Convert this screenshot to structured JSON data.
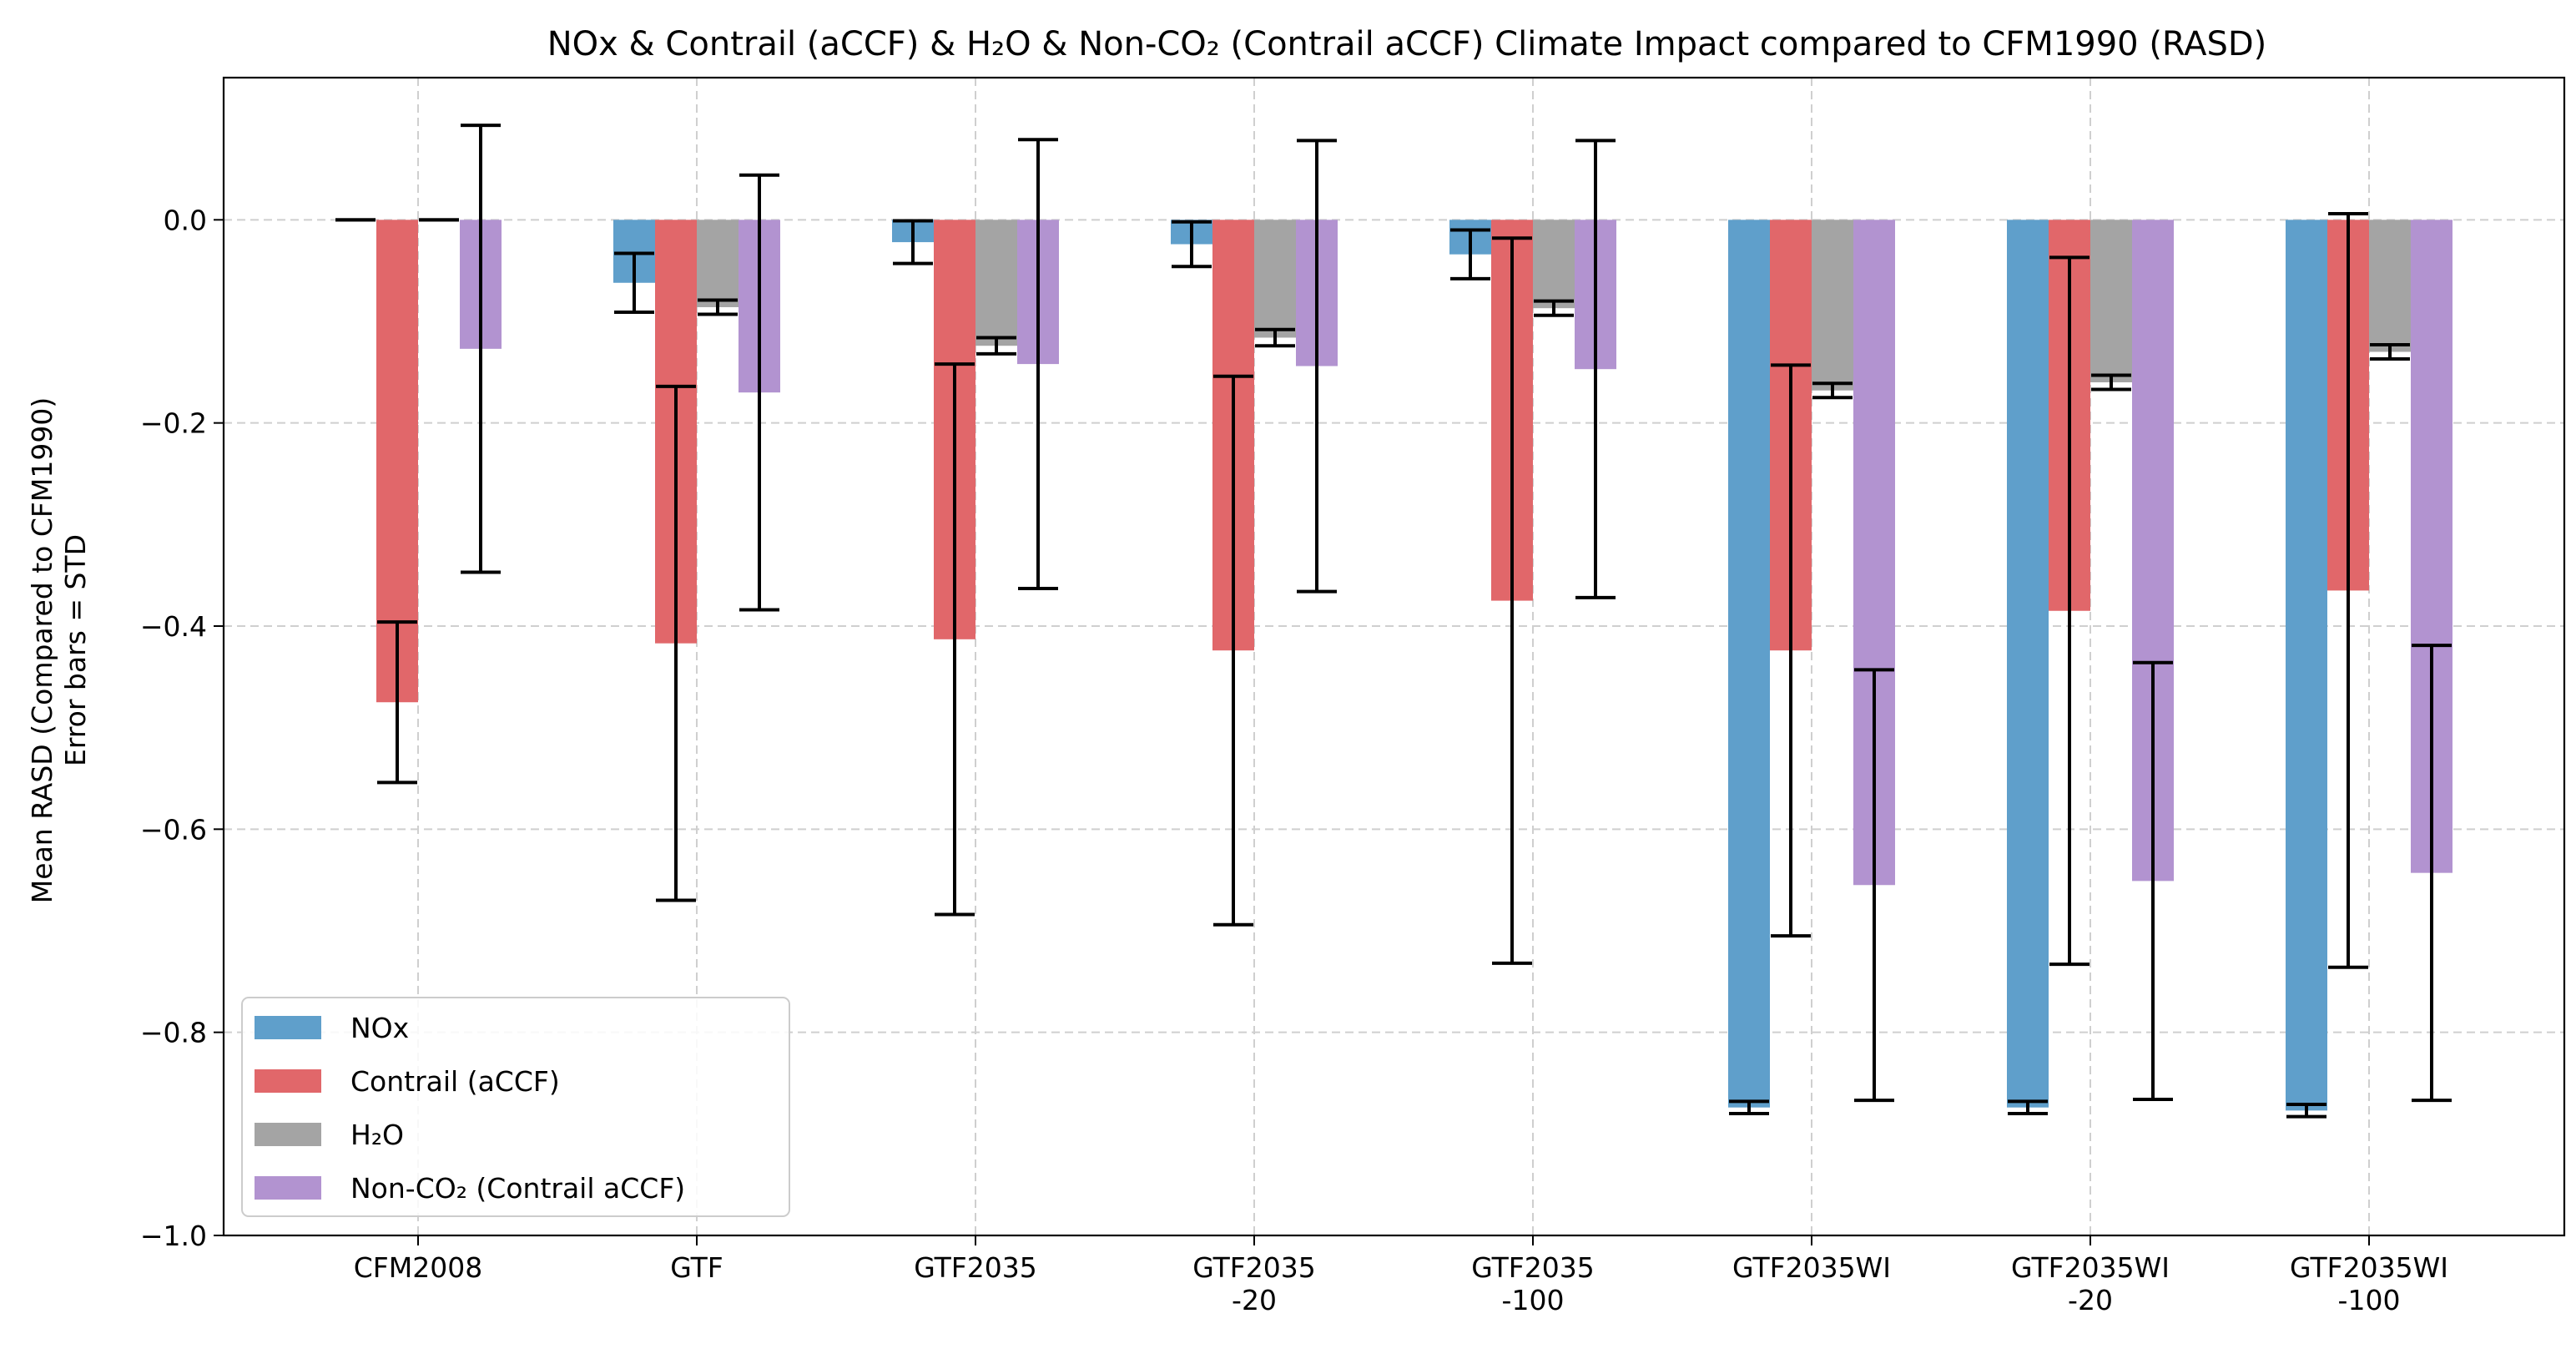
{
  "chart_data": {
    "type": "bar",
    "title": "NOx & Contrail (aCCF) & H₂O & Non-CO₂ (Contrail aCCF) Climate Impact compared to CFM1990 (RASD)",
    "xlabel": "",
    "ylabel_lines": [
      "Mean RASD (Compared to CFM1990)",
      "Error bars = STD"
    ],
    "ylim": [
      -1.0,
      0.14
    ],
    "yticks": [
      0.0,
      -0.2,
      -0.4,
      -0.6,
      -0.8,
      -1.0
    ],
    "ytick_labels": [
      "0.0",
      "−0.2",
      "−0.4",
      "−0.6",
      "−0.8",
      "−1.0"
    ],
    "grid": true,
    "legend_position": "lower-left",
    "categories": [
      [
        "CFM2008"
      ],
      [
        "GTF"
      ],
      [
        "GTF2035"
      ],
      [
        "GTF2035",
        "-20"
      ],
      [
        "GTF2035",
        "-100"
      ],
      [
        "GTF2035WI"
      ],
      [
        "GTF2035WI",
        "-20"
      ],
      [
        "GTF2035WI",
        "-100"
      ]
    ],
    "series": [
      {
        "name": "NOx",
        "color": "#5f9fcb",
        "values": [
          0.0,
          -0.062,
          -0.022,
          -0.024,
          -0.034,
          -0.874,
          -0.874,
          -0.877
        ],
        "errors": [
          0.0,
          0.029,
          0.021,
          0.022,
          0.024,
          0.006,
          0.006,
          0.006
        ]
      },
      {
        "name": "Contrail (aCCF)",
        "color": "#e1676a",
        "values": [
          -0.475,
          -0.417,
          -0.413,
          -0.424,
          -0.375,
          -0.424,
          -0.385,
          -0.365
        ],
        "errors": [
          0.079,
          0.253,
          0.271,
          0.27,
          0.357,
          0.281,
          0.348,
          0.371
        ]
      },
      {
        "name": "H₂O",
        "color": "#a4a4a4",
        "values": [
          0.0,
          -0.086,
          -0.124,
          -0.116,
          -0.087,
          -0.168,
          -0.16,
          -0.13
        ],
        "errors": [
          0.0,
          0.007,
          0.008,
          0.008,
          0.007,
          0.007,
          0.007,
          0.007
        ]
      },
      {
        "name": "Non-CO₂ (Contrail aCCF)",
        "color": "#b293d0",
        "values": [
          -0.127,
          -0.17,
          -0.142,
          -0.144,
          -0.147,
          -0.655,
          -0.651,
          -0.643
        ],
        "errors": [
          0.22,
          0.214,
          0.221,
          0.222,
          0.225,
          0.212,
          0.215,
          0.224
        ]
      }
    ]
  }
}
